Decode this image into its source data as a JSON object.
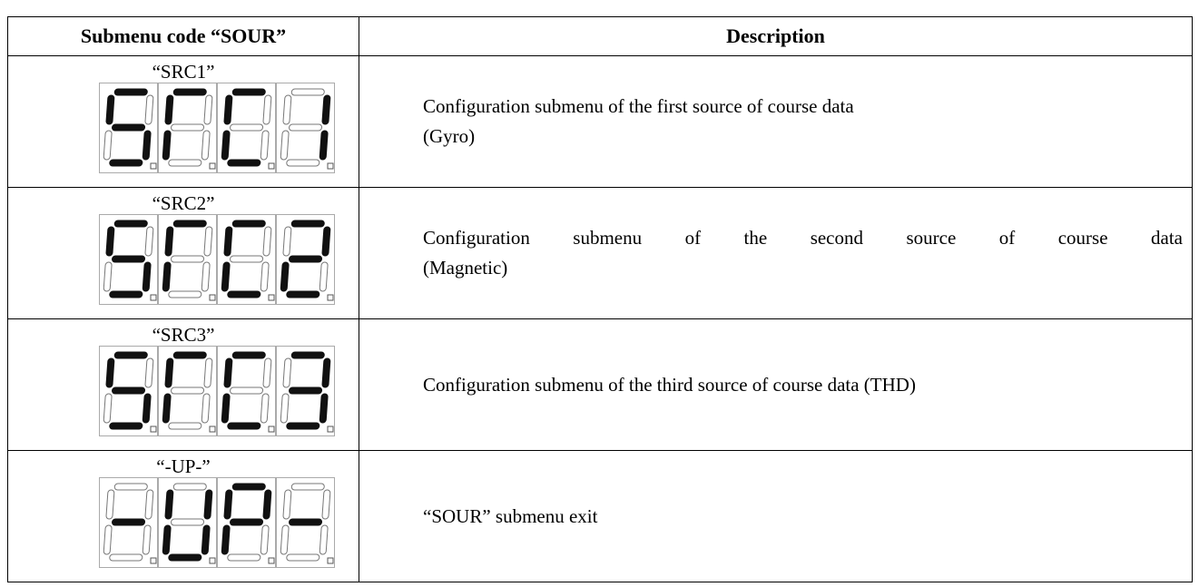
{
  "table": {
    "headers": [
      "Submenu code “SOUR”",
      "Description"
    ],
    "rows": [
      {
        "code": "“SRC1”",
        "description": [
          "Configuration submenu of the first source of course data",
          "(Gyro)"
        ]
      },
      {
        "code": "“SRC2”",
        "description": [
          "Configuration submenu of the second source of course data",
          "(Magnetic)"
        ]
      },
      {
        "code": "“SRC3”",
        "description": [
          "Configuration submenu of the third source of course data (THD)"
        ]
      },
      {
        "code": "“-UP-”",
        "description": [
          "“SOUR” submenu exit"
        ]
      }
    ]
  }
}
